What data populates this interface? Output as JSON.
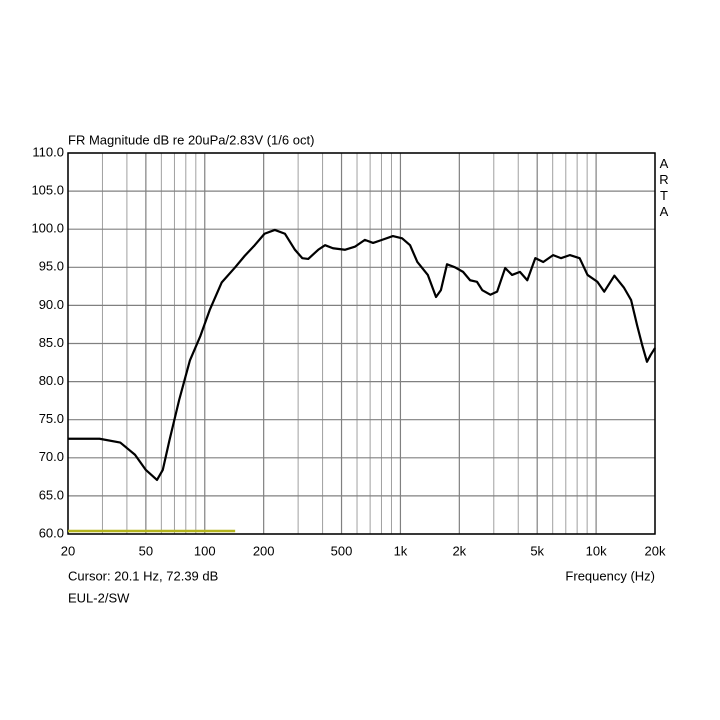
{
  "chart_data": {
    "type": "line",
    "title": "FR Magnitude dB re 20uPa/2.83V (1/6 oct)",
    "watermark": "ARTA",
    "xlabel": "Frequency (Hz)",
    "cursor_text": "Cursor: 20.1 Hz, 72.39 dB",
    "footer": "EUL-2/SW",
    "xscale": "log",
    "grid": true,
    "xlim": [
      20,
      20000
    ],
    "ylim": [
      60,
      110
    ],
    "xticks": [
      20,
      50,
      100,
      200,
      500,
      {
        "value": 1000,
        "label": "1k"
      },
      {
        "value": 2000,
        "label": "2k"
      },
      {
        "value": 5000,
        "label": "5k"
      },
      {
        "value": 10000,
        "label": "10k"
      },
      {
        "value": 20000,
        "label": "20k"
      }
    ],
    "xgrid_minor": [
      30,
      40,
      60,
      70,
      80,
      90,
      300,
      400,
      600,
      700,
      800,
      900,
      3000,
      4000,
      6000,
      7000,
      8000,
      9000
    ],
    "yticks": [
      {
        "value": 60,
        "label": "60.0"
      },
      {
        "value": 65,
        "label": "65.0"
      },
      {
        "value": 70,
        "label": "70.0"
      },
      {
        "value": 75,
        "label": "75.0"
      },
      {
        "value": 80,
        "label": "80.0"
      },
      {
        "value": 85,
        "label": "85.0"
      },
      {
        "value": 90,
        "label": "90.0"
      },
      {
        "value": 95,
        "label": "95.0"
      },
      {
        "value": 100,
        "label": "100.0"
      },
      {
        "value": 105,
        "label": "105.0"
      },
      {
        "value": 110,
        "label": "110.0"
      }
    ],
    "series": [
      {
        "color": "#000000",
        "x": [
          20,
          29,
          37,
          44,
          50,
          57,
          61,
          66,
          74,
          84,
          95,
          106,
          122,
          143,
          160,
          180,
          202,
          228,
          257,
          289,
          315,
          338,
          380,
          412,
          452,
          520,
          585,
          658,
          725,
          805,
          915,
          1020,
          1120,
          1220,
          1380,
          1520,
          1610,
          1730,
          1900,
          2090,
          2270,
          2460,
          2620,
          2880,
          3120,
          3430,
          3720,
          4080,
          4450,
          4890,
          5370,
          6030,
          6610,
          7340,
          8240,
          9040,
          10150,
          11000,
          12400,
          13900,
          15100,
          16200,
          17200,
          18200,
          19000,
          20000
        ],
        "values": [
          72.5,
          72.5,
          72,
          70.4,
          68.4,
          67.1,
          68.4,
          72.3,
          77.6,
          82.8,
          86,
          89.4,
          93,
          95,
          96.5,
          97.9,
          99.4,
          99.9,
          99.4,
          97.3,
          96.2,
          96.1,
          97.3,
          97.9,
          97.5,
          97.3,
          97.7,
          98.6,
          98.2,
          98.6,
          99.1,
          98.8,
          97.9,
          95.7,
          94,
          91.1,
          92,
          95.4,
          95,
          94.4,
          93.3,
          93.1,
          92,
          91.4,
          91.8,
          94.9,
          94,
          94.4,
          93.3,
          96.2,
          95.7,
          96.6,
          96.2,
          96.6,
          96.2,
          94,
          93.1,
          91.8,
          93.9,
          92.3,
          90.7,
          87.4,
          84.8,
          82.6,
          83.5,
          84.4
        ]
      },
      {
        "color": "#b4b41e",
        "x": [
          20,
          143
        ],
        "values": [
          60.4,
          60.4
        ]
      }
    ]
  }
}
